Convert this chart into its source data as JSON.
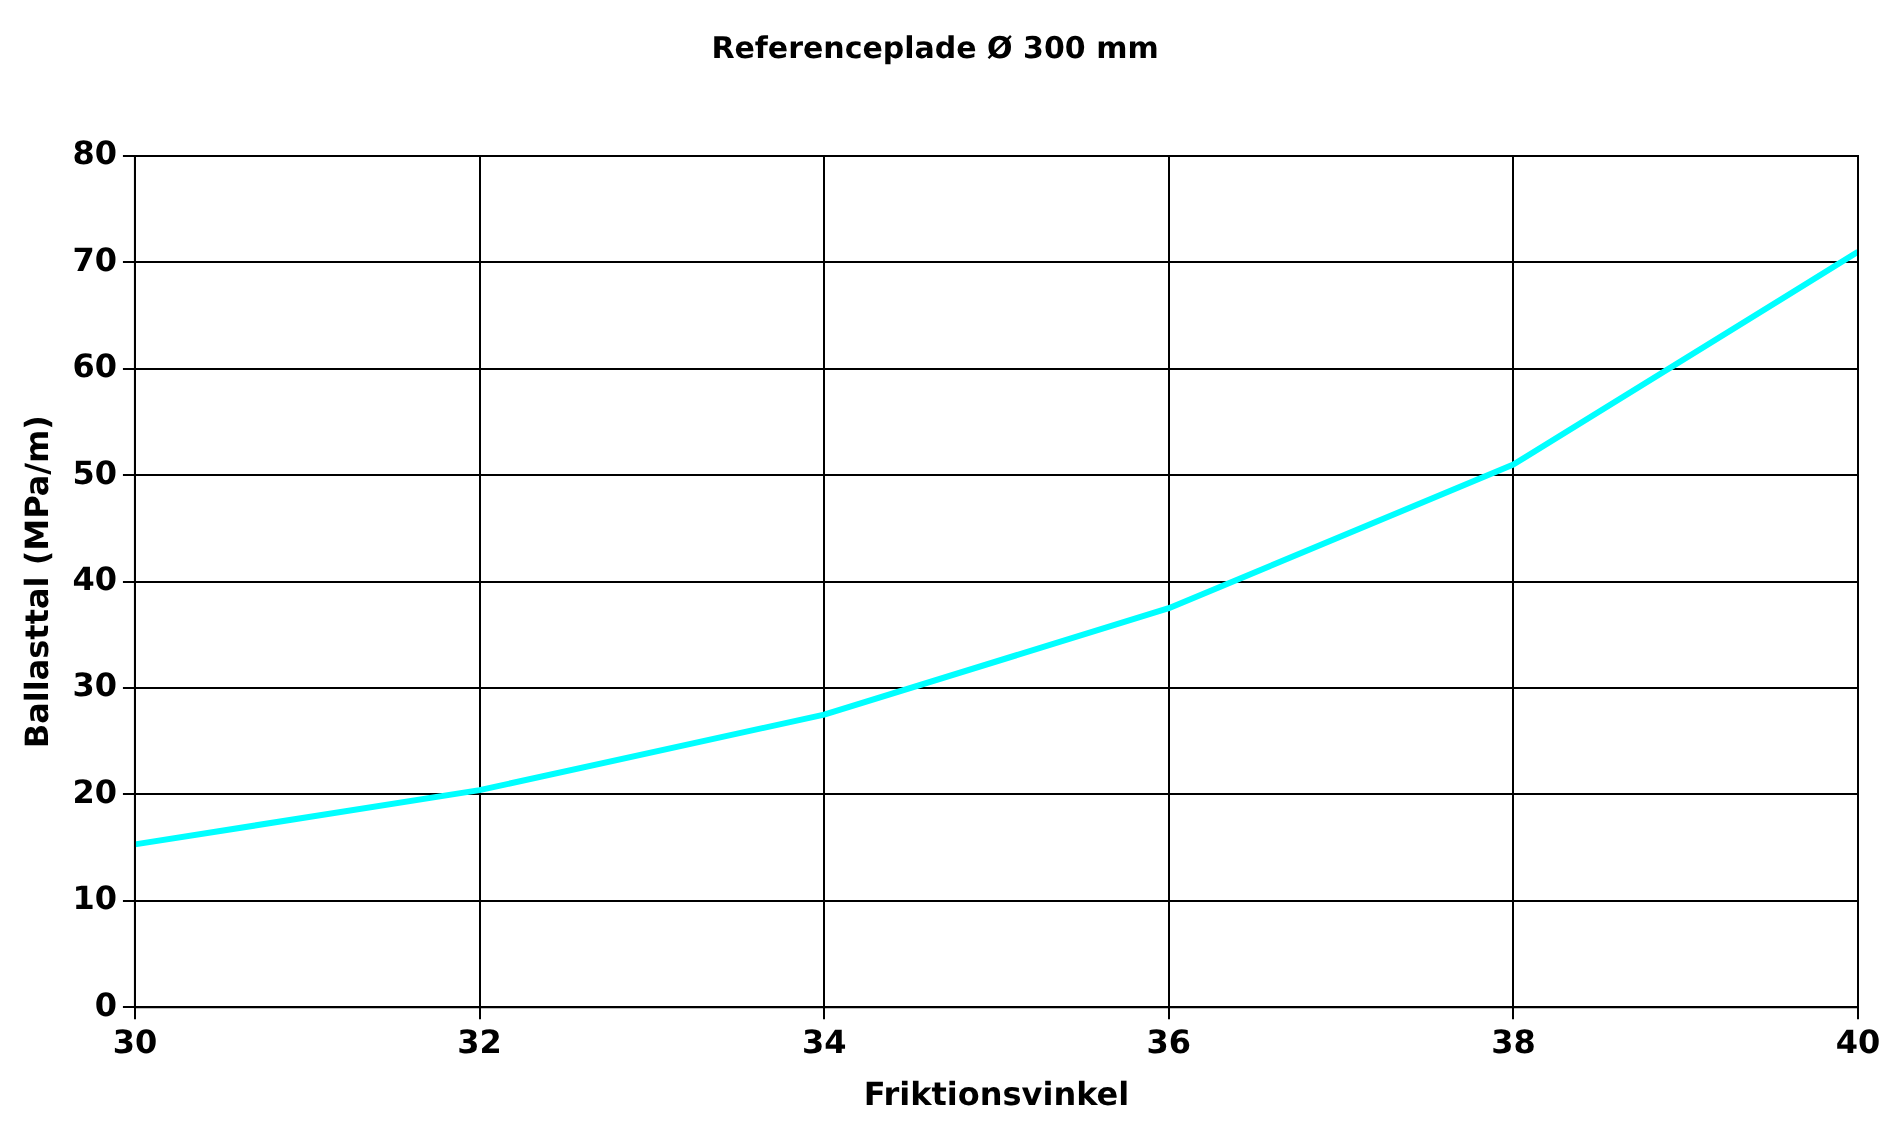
{
  "chart_data": {
    "type": "line",
    "title": "Referenceplade Ø 300 mm",
    "xlabel": "Friktionsvinkel",
    "ylabel": "Ballasttal (MPa/m)",
    "x": [
      30,
      32,
      34,
      36,
      38,
      40
    ],
    "series": [
      {
        "color": "#00ffff",
        "values": [
          15.3,
          20.4,
          27.5,
          37.5,
          51,
          71
        ]
      }
    ],
    "xlim": [
      30,
      40
    ],
    "xticks": [
      30,
      32,
      34,
      36,
      38,
      40
    ],
    "ylim": [
      0,
      80
    ],
    "yticks": [
      0,
      10,
      20,
      30,
      40,
      50,
      60,
      70,
      80
    ],
    "grid": true,
    "legend": false,
    "marker": "none",
    "line_style": "solid"
  }
}
